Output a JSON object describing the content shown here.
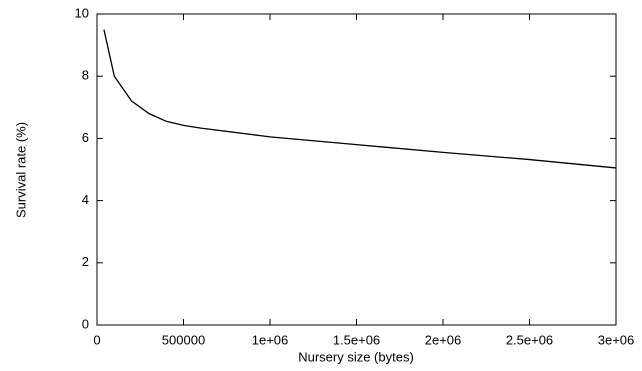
{
  "chart_data": {
    "type": "line",
    "xlabel": "Nursery size (bytes)",
    "ylabel": "Survival rate (%)",
    "x": [
      40000,
      100000,
      200000,
      300000,
      400000,
      500000,
      600000,
      1000000,
      1500000,
      2000000,
      2500000,
      3000000
    ],
    "series": [
      {
        "color": "#000000",
        "values": [
          9.5,
          8.0,
          7.2,
          6.8,
          6.55,
          6.42,
          6.33,
          6.05,
          5.8,
          5.55,
          5.32,
          5.05
        ]
      }
    ],
    "xlim": [
      0,
      3000000
    ],
    "xticks": [
      0,
      500000,
      {
        "value": 1000000,
        "label": "1e+06"
      },
      {
        "value": 1500000,
        "label": "1.5e+06"
      },
      {
        "value": 2000000,
        "label": "2e+06"
      },
      {
        "value": 2500000,
        "label": "2.5e+06"
      },
      {
        "value": 3000000,
        "label": "3e+06"
      }
    ],
    "ylim": [
      0,
      10
    ],
    "yticks": [
      0,
      2,
      4,
      6,
      8,
      10
    ]
  }
}
